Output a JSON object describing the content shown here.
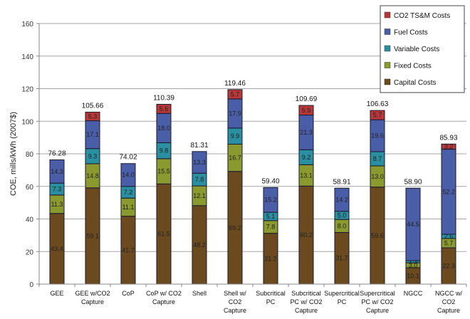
{
  "chart_data": {
    "type": "bar",
    "stacked": true,
    "title": "",
    "xlabel": "",
    "ylabel": "COE, mills/kWh (2007$)",
    "ylim": [
      0,
      160
    ],
    "yticks": [
      0,
      20,
      40,
      60,
      80,
      100,
      120,
      140,
      160
    ],
    "grid": true,
    "legend_position": "top-right",
    "categories": [
      [
        "GEE"
      ],
      [
        "GEE w/CO2",
        "Capture"
      ],
      [
        "CoP"
      ],
      [
        "CoP w/ CO2",
        "Capture"
      ],
      [
        "Shell"
      ],
      [
        "Shell w/",
        "CO2",
        "Capture"
      ],
      [
        "Subcritical",
        "PC"
      ],
      [
        "Subcritical",
        "PC w/ CO2",
        "Capture"
      ],
      [
        "Supercritical",
        "PC"
      ],
      [
        "Supercritical",
        "PC w/ CO2",
        "Capture"
      ],
      [
        "NGCC"
      ],
      [
        "NGCC w/",
        "CO2",
        "Capture"
      ]
    ],
    "series": [
      {
        "name": "Capital Costs",
        "color": "#6b4a1f",
        "values": [
          43.4,
          59.1,
          41.7,
          61.5,
          48.2,
          69.2,
          31.2,
          60.2,
          31.7,
          59.6,
          10.1,
          22.3
        ]
      },
      {
        "name": "Fixed Costs",
        "color": "#8a9a2e",
        "values": [
          11.3,
          14.8,
          11.1,
          15.5,
          12.1,
          16.7,
          7.8,
          13.1,
          8.0,
          13.0,
          3.0,
          5.7
        ]
      },
      {
        "name": "Variable Costs",
        "color": "#2a8fa0",
        "values": [
          7.3,
          9.3,
          7.2,
          9.8,
          7.8,
          9.9,
          5.1,
          9.2,
          5.0,
          8.7,
          1.3,
          2.6
        ]
      },
      {
        "name": "Fuel Costs",
        "color": "#4a5ea8",
        "values": [
          14.3,
          17.1,
          14.0,
          18.0,
          13.3,
          17.9,
          15.2,
          21.3,
          14.2,
          19.6,
          44.5,
          52.2
        ]
      },
      {
        "name": "CO2 TS&M Costs",
        "color": "#b8383a",
        "values": [
          0,
          5.3,
          0,
          5.6,
          0,
          5.7,
          0,
          5.9,
          0,
          5.7,
          0,
          3.2
        ]
      }
    ],
    "totals": [
      "76.28",
      "105.66",
      "74.02",
      "110.39",
      "81.31",
      "119.46",
      "59.40",
      "109.69",
      "58.91",
      "106.63",
      "58.90",
      "85.93"
    ],
    "legend_order": [
      "CO2 TS&M Costs",
      "Fuel Costs",
      "Variable Costs",
      "Fixed Costs",
      "Capital Costs"
    ]
  }
}
